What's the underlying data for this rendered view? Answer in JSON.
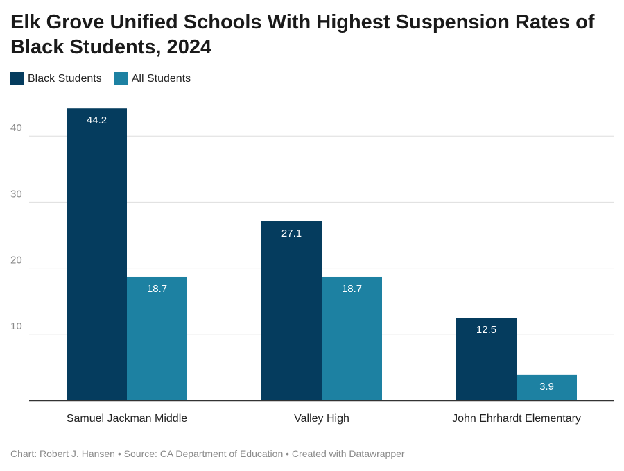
{
  "title": "Elk Grove Unified Schools With Highest Suspension Rates of Black Students, 2024",
  "footer": {
    "chart_credit": "Chart: Robert J. Hansen",
    "separator": "•",
    "source": "Source: CA Department of Education",
    "created_with": "Created with Datawrapper"
  },
  "chart_data": {
    "type": "bar",
    "title": "Elk Grove Unified Schools With Highest Suspension Rates of Black Students, 2024",
    "xlabel": "",
    "ylabel": "",
    "categories": [
      "Samuel Jackman Middle",
      "Valley High",
      "John Ehrhardt Elementary"
    ],
    "series": [
      {
        "name": "Black Students",
        "color": "#053c5e",
        "values": [
          44.2,
          27.1,
          12.5
        ]
      },
      {
        "name": "All Students",
        "color": "#1d81a2",
        "values": [
          18.7,
          18.7,
          3.9
        ]
      }
    ],
    "yticks": [
      10,
      20,
      30,
      40
    ],
    "ylim": [
      0,
      46
    ],
    "grid": true,
    "legend": "top-left"
  }
}
